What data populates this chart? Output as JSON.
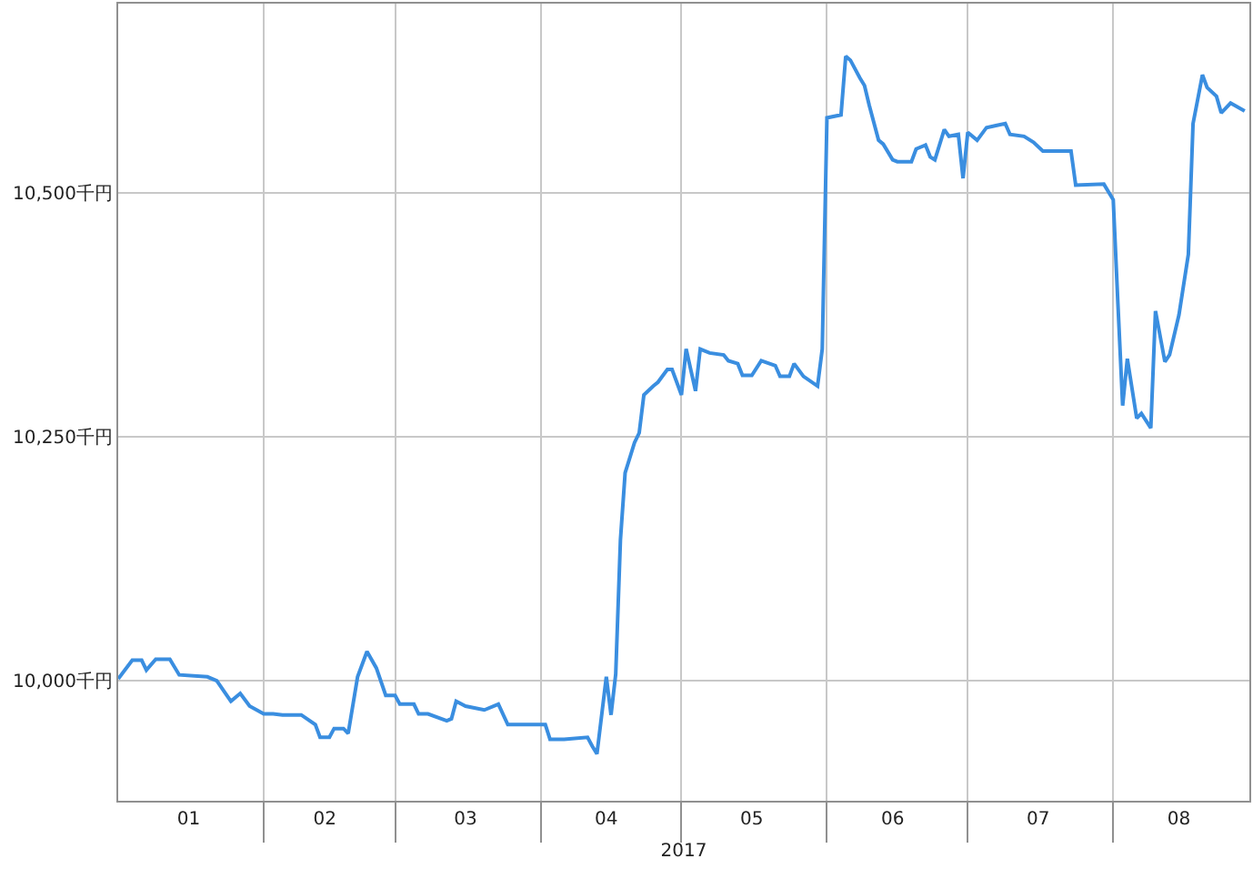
{
  "chart_data": {
    "type": "line",
    "xlabel": "2017",
    "x": [
      "2017-01-01",
      "2017-01-04",
      "2017-01-06",
      "2017-01-07",
      "2017-01-09",
      "2017-01-12",
      "2017-01-14",
      "2017-01-20",
      "2017-01-22",
      "2017-01-25",
      "2017-01-27",
      "2017-01-29",
      "2017-02-01",
      "2017-02-03",
      "2017-02-05",
      "2017-02-09",
      "2017-02-12",
      "2017-02-13",
      "2017-02-15",
      "2017-02-16",
      "2017-02-18",
      "2017-02-19",
      "2017-02-21",
      "2017-02-23",
      "2017-02-25",
      "2017-02-27",
      "2017-03-01",
      "2017-03-02",
      "2017-03-05",
      "2017-03-06",
      "2017-03-08",
      "2017-03-12",
      "2017-03-13",
      "2017-03-14",
      "2017-03-16",
      "2017-03-20",
      "2017-03-23",
      "2017-03-25",
      "2017-04-02",
      "2017-04-03",
      "2017-04-06",
      "2017-04-11",
      "2017-04-12",
      "2017-04-13",
      "2017-04-15",
      "2017-04-16",
      "2017-04-17",
      "2017-04-18",
      "2017-04-19",
      "2017-04-21",
      "2017-04-22",
      "2017-04-23",
      "2017-04-25",
      "2017-04-26",
      "2017-04-28",
      "2017-04-29",
      "2017-05-01",
      "2017-05-02",
      "2017-05-04",
      "2017-05-05",
      "2017-05-07",
      "2017-05-10",
      "2017-05-11",
      "2017-05-13",
      "2017-05-14",
      "2017-05-16",
      "2017-05-18",
      "2017-05-21",
      "2017-05-22",
      "2017-05-24",
      "2017-05-25",
      "2017-05-27",
      "2017-05-30",
      "2017-05-31",
      "2017-06-01",
      "2017-06-04",
      "2017-06-05",
      "2017-06-06",
      "2017-06-08",
      "2017-06-09",
      "2017-06-10",
      "2017-06-12",
      "2017-06-13",
      "2017-06-15",
      "2017-06-16",
      "2017-06-19",
      "2017-06-20",
      "2017-06-22",
      "2017-06-23",
      "2017-06-24",
      "2017-06-26",
      "2017-06-27",
      "2017-06-29",
      "2017-06-30",
      "2017-07-01",
      "2017-07-03",
      "2017-07-05",
      "2017-07-07",
      "2017-07-09",
      "2017-07-10",
      "2017-07-13",
      "2017-07-15",
      "2017-07-17",
      "2017-07-23",
      "2017-07-24",
      "2017-07-30",
      "2017-08-01",
      "2017-08-02",
      "2017-08-03",
      "2017-08-04",
      "2017-08-06",
      "2017-08-07",
      "2017-08-09",
      "2017-08-10",
      "2017-08-12",
      "2017-08-13",
      "2017-08-15",
      "2017-08-17",
      "2017-08-18",
      "2017-08-20",
      "2017-08-21",
      "2017-08-23",
      "2017-08-24",
      "2017-08-26",
      "2017-08-29"
    ],
    "series": [
      {
        "color": "#3a8ee0",
        "values": [
          10002,
          10021,
          10021,
          10011,
          10022,
          10022,
          10006,
          10004,
          10000,
          9979,
          9987,
          9974,
          9966,
          9966,
          9965,
          9965,
          9955,
          9942,
          9942,
          9951,
          9951,
          9946,
          10004,
          10030,
          10013,
          9985,
          9985,
          9976,
          9976,
          9966,
          9966,
          9959,
          9961,
          9979,
          9974,
          9970,
          9976,
          9955,
          9955,
          9940,
          9940,
          9942,
          9933,
          9925,
          10004,
          9965,
          10007,
          10144,
          10213,
          10244,
          10254,
          10293,
          10302,
          10306,
          10319,
          10319,
          10293,
          10340,
          10297,
          10340,
          10336,
          10334,
          10328,
          10325,
          10313,
          10313,
          10328,
          10323,
          10312,
          10312,
          10325,
          10312,
          10302,
          10340,
          10577,
          10580,
          10640,
          10636,
          10618,
          10610,
          10590,
          10554,
          10550,
          10534,
          10532,
          10532,
          10545,
          10549,
          10537,
          10534,
          10565,
          10558,
          10560,
          10515,
          10562,
          10554,
          10567,
          10569,
          10571,
          10560,
          10558,
          10552,
          10543,
          10543,
          10508,
          10509,
          10493,
          10386,
          10282,
          10330,
          10269,
          10274,
          10259,
          10379,
          10327,
          10334,
          10375,
          10437,
          10571,
          10621,
          10608,
          10599,
          10582,
          10592,
          10584
        ]
      }
    ],
    "xlim": [
      "2017-01-01",
      "2017-08-30"
    ],
    "xticks": [
      {
        "value": "2017-02-01",
        "label": null
      },
      {
        "value": "2017-03-01",
        "label": null
      },
      {
        "value": "2017-04-01",
        "label": null
      },
      {
        "value": "2017-05-01",
        "label": null
      },
      {
        "value": "2017-06-01",
        "label": null
      },
      {
        "value": "2017-07-01",
        "label": null
      },
      {
        "value": "2017-08-01",
        "label": null
      },
      {
        "value": "2017-01-16",
        "label": "01"
      },
      {
        "value": "2017-02-14",
        "label": "02"
      },
      {
        "value": "2017-03-16",
        "label": "03"
      },
      {
        "value": "2017-04-15",
        "label": "04"
      },
      {
        "value": "2017-05-16",
        "label": "05"
      },
      {
        "value": "2017-06-15",
        "label": "06"
      },
      {
        "value": "2017-07-16",
        "label": "07"
      },
      {
        "value": "2017-08-15",
        "label": "08"
      }
    ],
    "ylim": [
      9877,
      10694
    ],
    "yticks": [
      {
        "value": 10000,
        "label": "10,000千円"
      },
      {
        "value": 10250,
        "label": "10,250千円"
      },
      {
        "value": 10500,
        "label": "10,500千円"
      }
    ],
    "grid": true,
    "marker": "none",
    "line_style": "solid"
  }
}
